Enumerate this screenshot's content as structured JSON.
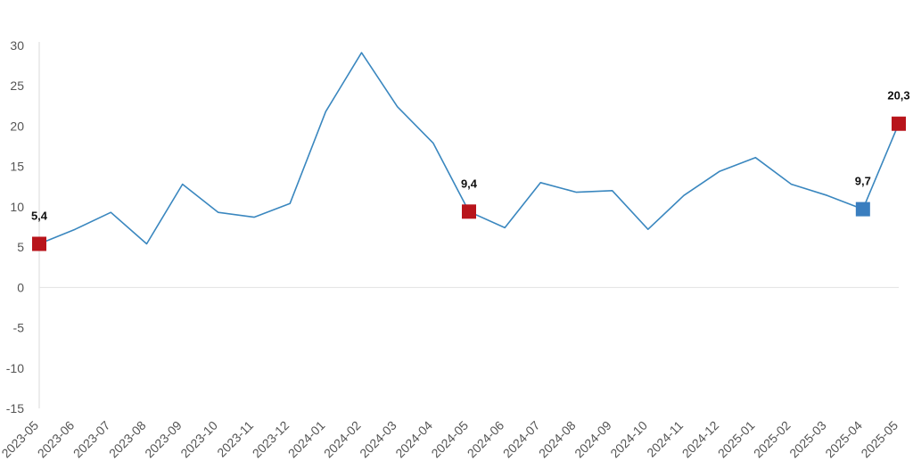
{
  "chart_data": {
    "type": "line",
    "title": "",
    "xlabel": "",
    "ylabel": "",
    "ylim": [
      -15,
      30
    ],
    "yticks": [
      30,
      25,
      20,
      15,
      10,
      5,
      0,
      -5,
      -10,
      -15
    ],
    "grid": false,
    "categories": [
      "2023-05",
      "2023-06",
      "2023-07",
      "2023-08",
      "2023-09",
      "2023-10",
      "2023-11",
      "2023-12",
      "2024-01",
      "2024-02",
      "2024-03",
      "2024-04",
      "2024-05",
      "2024-06",
      "2024-07",
      "2024-08",
      "2024-09",
      "2024-10",
      "2024-11",
      "2024-12",
      "2025-01",
      "2025-02",
      "2025-03",
      "2025-04",
      "2025-05"
    ],
    "series": [
      {
        "color": "#3a87bf",
        "values": [
          5.4,
          7.2,
          9.3,
          5.4,
          12.8,
          9.3,
          8.7,
          10.4,
          21.8,
          29.1,
          22.4,
          17.9,
          9.4,
          7.4,
          13.0,
          11.8,
          12.0,
          7.2,
          11.4,
          14.4,
          16.1,
          12.8,
          11.4,
          9.7,
          20.3
        ]
      }
    ],
    "highlights": [
      {
        "index": 0,
        "label": "5,4",
        "color": "#b8141b"
      },
      {
        "index": 12,
        "label": "9,4",
        "color": "#b8141b"
      },
      {
        "index": 23,
        "label": "9,7",
        "color": "#3a7ebf"
      },
      {
        "index": 24,
        "label": "20,3",
        "color": "#b8141b"
      }
    ]
  }
}
